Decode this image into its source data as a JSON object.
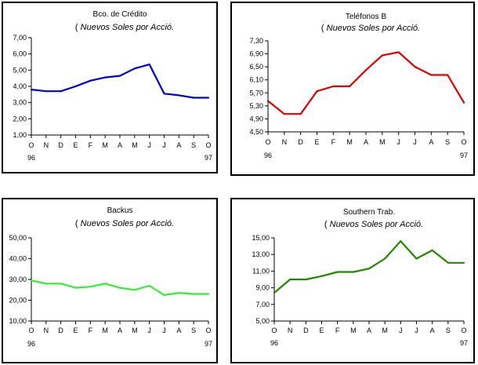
{
  "chart_data": [
    {
      "type": "line",
      "title": "Bco. de Crédito",
      "subtitle_prefix": "(",
      "subtitle": "Nuevos Soles por Acció.",
      "color": "#0000cc",
      "categories": [
        "O",
        "N",
        "D",
        "E",
        "F",
        "M",
        "A",
        "M",
        "J",
        "J",
        "A",
        "S",
        "O"
      ],
      "year_start": "96",
      "year_end": "97",
      "yticks": [
        "1,00",
        "2,00",
        "3,00",
        "4,00",
        "5,00",
        "6,00",
        "7,00"
      ],
      "ylim": [
        1.0,
        7.0
      ],
      "values": [
        3.8,
        3.7,
        3.7,
        4.0,
        4.35,
        4.55,
        4.65,
        5.1,
        5.35,
        3.55,
        3.45,
        3.3,
        3.3
      ]
    },
    {
      "type": "line",
      "title": "Teléfonos B",
      "subtitle_prefix": "(",
      "subtitle": "Nuevos Soles por Acció.",
      "color": "#dd0000",
      "categories": [
        "O",
        "N",
        "D",
        "E",
        "F",
        "M",
        "A",
        "M",
        "J",
        "J",
        "A",
        "S",
        "O"
      ],
      "year_start": "96",
      "year_end": "97",
      "yticks": [
        "4,50",
        "4,90",
        "5,30",
        "5,70",
        "6,10",
        "6,50",
        "6,90",
        "7,30"
      ],
      "ylim": [
        4.5,
        7.3
      ],
      "values": [
        5.45,
        5.05,
        5.05,
        5.75,
        5.9,
        5.9,
        6.4,
        6.85,
        6.95,
        6.5,
        6.25,
        6.25,
        5.4
      ]
    },
    {
      "type": "line",
      "title": "Backus",
      "subtitle_prefix": "(",
      "subtitle": "Nuevos Soles por Acció.",
      "color": "#33ee33",
      "categories": [
        "O",
        "N",
        "D",
        "E",
        "F",
        "M",
        "A",
        "M",
        "J",
        "J",
        "A",
        "S",
        "O"
      ],
      "year_start": "96",
      "year_end": "97",
      "yticks": [
        "10,00",
        "20,00",
        "30,00",
        "40,00",
        "50,00"
      ],
      "ylim": [
        10.0,
        50.0
      ],
      "values": [
        29.5,
        28.0,
        28.0,
        26.0,
        26.5,
        28.0,
        26.0,
        25.0,
        27.0,
        22.5,
        23.5,
        23.0,
        23.0
      ]
    },
    {
      "type": "line",
      "title": "Southern Trab.",
      "subtitle_prefix": "(",
      "subtitle": "Nuevos Soles por Acció.",
      "color": "#228800",
      "categories": [
        "O",
        "N",
        "D",
        "E",
        "F",
        "M",
        "A",
        "M",
        "J",
        "J",
        "A",
        "S",
        "O"
      ],
      "year_start": "96",
      "year_end": "97",
      "yticks": [
        "5,00",
        "7,00",
        "9,00",
        "11,00",
        "13,00",
        "15,00"
      ],
      "ylim": [
        5.0,
        15.0
      ],
      "values": [
        8.4,
        10.0,
        10.0,
        10.4,
        10.9,
        10.9,
        11.3,
        12.5,
        14.6,
        12.5,
        13.5,
        12.0,
        12.0
      ]
    }
  ]
}
